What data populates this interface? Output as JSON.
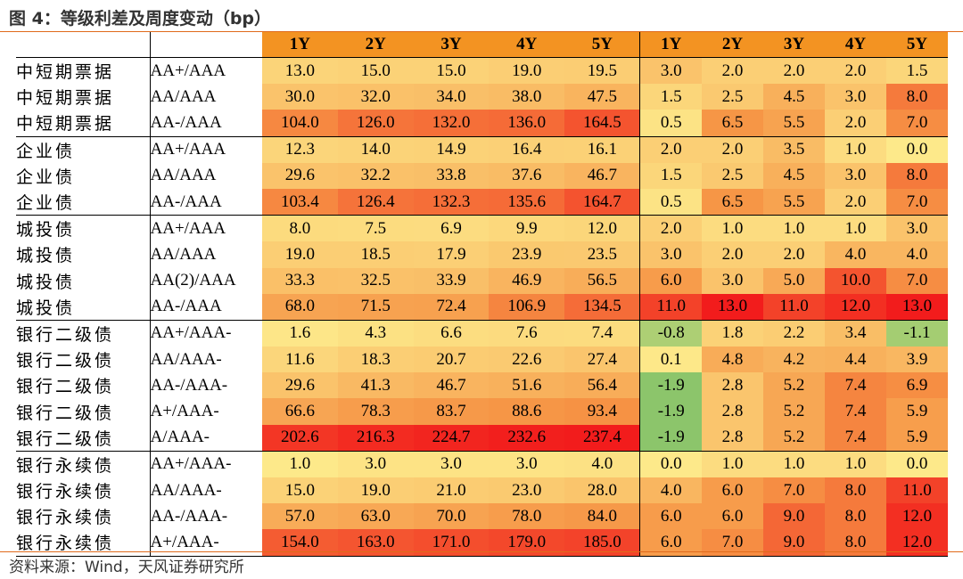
{
  "title": "图 4：等级利差及周度变动（bp）",
  "source": "资料来源：Wind，天风证券研究所",
  "header": {
    "spread_years": [
      "1Y",
      "2Y",
      "3Y",
      "4Y",
      "5Y"
    ],
    "change_years": [
      "1Y",
      "2Y",
      "3Y",
      "4Y",
      "5Y"
    ]
  },
  "colors": {
    "header": "#f39322",
    "low": "#fde98a",
    "high": "#f21c1c",
    "negative": "#8cc56b",
    "rule": "#e06a1b"
  },
  "rows": [
    {
      "name": "中短期票据",
      "rating": "AA+/AAA",
      "spreads": [
        "13.0",
        "15.0",
        "15.0",
        "19.0",
        "19.5"
      ],
      "changes": [
        "3.0",
        "2.0",
        "2.0",
        "2.0",
        "1.5"
      ],
      "group_start": true
    },
    {
      "name": "中短期票据",
      "rating": "AA/AAA",
      "spreads": [
        "30.0",
        "32.0",
        "34.0",
        "38.0",
        "47.5"
      ],
      "changes": [
        "1.5",
        "2.5",
        "4.5",
        "3.0",
        "8.0"
      ],
      "group_start": false
    },
    {
      "name": "中短期票据",
      "rating": "AA-/AAA",
      "spreads": [
        "104.0",
        "126.0",
        "132.0",
        "136.0",
        "164.5"
      ],
      "changes": [
        "0.5",
        "6.5",
        "5.5",
        "2.0",
        "7.0"
      ],
      "group_start": false
    },
    {
      "name": "企业债",
      "rating": "AA+/AAA",
      "spreads": [
        "12.3",
        "14.0",
        "14.9",
        "16.4",
        "16.1"
      ],
      "changes": [
        "2.0",
        "2.0",
        "3.5",
        "1.0",
        "0.0"
      ],
      "group_start": true
    },
    {
      "name": "企业债",
      "rating": "AA/AAA",
      "spreads": [
        "29.6",
        "32.2",
        "33.8",
        "37.6",
        "46.7"
      ],
      "changes": [
        "1.5",
        "2.5",
        "4.5",
        "3.0",
        "8.0"
      ],
      "group_start": false
    },
    {
      "name": "企业债",
      "rating": "AA-/AAA",
      "spreads": [
        "103.4",
        "126.4",
        "132.3",
        "135.6",
        "164.7"
      ],
      "changes": [
        "0.5",
        "6.5",
        "5.5",
        "2.0",
        "7.0"
      ],
      "group_start": false
    },
    {
      "name": "城投债",
      "rating": "AA+/AAA",
      "spreads": [
        "8.0",
        "7.5",
        "6.9",
        "9.9",
        "12.0"
      ],
      "changes": [
        "2.0",
        "1.0",
        "1.0",
        "1.0",
        "3.0"
      ],
      "group_start": true
    },
    {
      "name": "城投债",
      "rating": "AA/AAA",
      "spreads": [
        "19.0",
        "18.5",
        "17.9",
        "23.9",
        "23.5"
      ],
      "changes": [
        "3.0",
        "2.0",
        "2.0",
        "4.0",
        "4.0"
      ],
      "group_start": false
    },
    {
      "name": "城投债",
      "rating": "AA(2)/AAA",
      "spreads": [
        "33.3",
        "32.5",
        "33.9",
        "46.9",
        "56.5"
      ],
      "changes": [
        "6.0",
        "3.0",
        "5.0",
        "10.0",
        "7.0"
      ],
      "group_start": false
    },
    {
      "name": "城投债",
      "rating": "AA-/AAA",
      "spreads": [
        "68.0",
        "71.5",
        "72.4",
        "106.9",
        "134.5"
      ],
      "changes": [
        "11.0",
        "13.0",
        "11.0",
        "12.0",
        "13.0"
      ],
      "group_start": false
    },
    {
      "name": "银行二级债",
      "rating": "AA+/AAA-",
      "spreads": [
        "1.6",
        "4.3",
        "6.6",
        "7.6",
        "7.4"
      ],
      "changes": [
        "-0.8",
        "1.8",
        "2.2",
        "3.4",
        "-1.1"
      ],
      "group_start": true
    },
    {
      "name": "银行二级债",
      "rating": "AA/AAA-",
      "spreads": [
        "11.6",
        "18.3",
        "20.7",
        "22.6",
        "27.4"
      ],
      "changes": [
        "0.1",
        "4.8",
        "4.2",
        "4.4",
        "3.9"
      ],
      "group_start": false
    },
    {
      "name": "银行二级债",
      "rating": "AA-/AAA-",
      "spreads": [
        "29.6",
        "41.3",
        "46.7",
        "51.6",
        "56.4"
      ],
      "changes": [
        "-1.9",
        "2.8",
        "5.2",
        "7.4",
        "6.9"
      ],
      "group_start": false
    },
    {
      "name": "银行二级债",
      "rating": "A+/AAA-",
      "spreads": [
        "66.6",
        "78.3",
        "83.7",
        "88.6",
        "93.4"
      ],
      "changes": [
        "-1.9",
        "2.8",
        "5.2",
        "7.4",
        "5.9"
      ],
      "group_start": false
    },
    {
      "name": "银行二级债",
      "rating": "A/AAA-",
      "spreads": [
        "202.6",
        "216.3",
        "224.7",
        "232.6",
        "237.4"
      ],
      "changes": [
        "-1.9",
        "2.8",
        "5.2",
        "7.4",
        "5.9"
      ],
      "group_start": false
    },
    {
      "name": "银行永续债",
      "rating": "AA+/AAA-",
      "spreads": [
        "1.0",
        "3.0",
        "3.0",
        "3.0",
        "4.0"
      ],
      "changes": [
        "0.0",
        "1.0",
        "1.0",
        "1.0",
        "0.0"
      ],
      "group_start": true
    },
    {
      "name": "银行永续债",
      "rating": "AA/AAA-",
      "spreads": [
        "15.0",
        "19.0",
        "21.0",
        "23.0",
        "28.0"
      ],
      "changes": [
        "4.0",
        "6.0",
        "7.0",
        "8.0",
        "11.0"
      ],
      "group_start": false
    },
    {
      "name": "银行永续债",
      "rating": "AA-/AAA-",
      "spreads": [
        "57.0",
        "63.0",
        "70.0",
        "78.0",
        "84.0"
      ],
      "changes": [
        "6.0",
        "6.0",
        "9.0",
        "8.0",
        "12.0"
      ],
      "group_start": false
    },
    {
      "name": "银行永续债",
      "rating": "A+/AAA-",
      "spreads": [
        "154.0",
        "163.0",
        "171.0",
        "179.0",
        "185.0"
      ],
      "changes": [
        "6.0",
        "7.0",
        "9.0",
        "8.0",
        "12.0"
      ],
      "group_start": false
    }
  ]
}
